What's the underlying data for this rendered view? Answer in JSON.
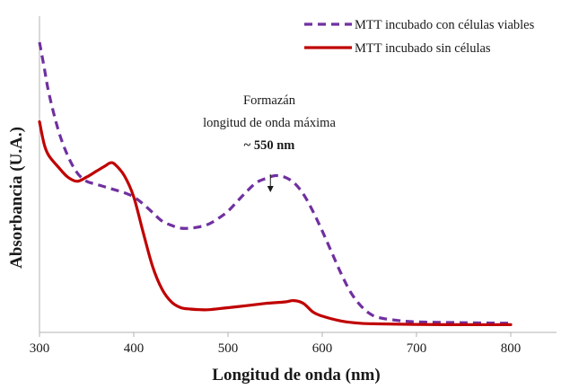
{
  "chart_data": {
    "type": "line",
    "title": "",
    "xlabel": "Longitud de onda (nm)",
    "ylabel": "Absorbancia  (U.A.)",
    "xlim": [
      300,
      800
    ],
    "xticks": [
      "300",
      "400",
      "500",
      "600",
      "700",
      "800"
    ],
    "yticks": [],
    "grid": false,
    "legend_position": "top-right",
    "series": [
      {
        "name": "MTT incubado con células viables",
        "color": "#7030a0",
        "style": "dashed",
        "x": [
          300,
          305,
          310,
          320,
          330,
          340,
          350,
          360,
          370,
          380,
          390,
          400,
          410,
          420,
          430,
          440,
          450,
          460,
          470,
          480,
          490,
          500,
          510,
          520,
          530,
          540,
          550,
          560,
          570,
          580,
          590,
          600,
          610,
          620,
          630,
          640,
          650,
          660,
          680,
          700,
          750,
          800
        ],
        "y": [
          1.0,
          0.91,
          0.82,
          0.69,
          0.6,
          0.54,
          0.51,
          0.5,
          0.49,
          0.48,
          0.47,
          0.455,
          0.43,
          0.4,
          0.37,
          0.355,
          0.345,
          0.345,
          0.35,
          0.36,
          0.38,
          0.405,
          0.44,
          0.475,
          0.505,
          0.52,
          0.53,
          0.525,
          0.505,
          0.465,
          0.405,
          0.335,
          0.26,
          0.185,
          0.12,
          0.075,
          0.045,
          0.03,
          0.02,
          0.015,
          0.012,
          0.01
        ]
      },
      {
        "name": "MTT incubado sin células",
        "color": "#c00000",
        "style": "solid",
        "x": [
          300,
          305,
          310,
          320,
          330,
          340,
          350,
          360,
          370,
          375,
          380,
          390,
          400,
          410,
          420,
          430,
          440,
          450,
          460,
          470,
          480,
          500,
          520,
          540,
          560,
          570,
          580,
          590,
          600,
          620,
          640,
          660,
          700,
          750,
          800
        ],
        "y": [
          0.72,
          0.64,
          0.6,
          0.56,
          0.525,
          0.51,
          0.525,
          0.545,
          0.565,
          0.575,
          0.57,
          0.53,
          0.455,
          0.33,
          0.21,
          0.13,
          0.085,
          0.065,
          0.06,
          0.058,
          0.058,
          0.065,
          0.072,
          0.08,
          0.085,
          0.09,
          0.08,
          0.05,
          0.035,
          0.018,
          0.01,
          0.008,
          0.006,
          0.005,
          0.005
        ]
      }
    ],
    "annotation": {
      "lines": [
        "Formazán",
        "longitud de onda máxima"
      ],
      "bold_line": "~ 550 nm",
      "arrow_x": 545
    }
  }
}
